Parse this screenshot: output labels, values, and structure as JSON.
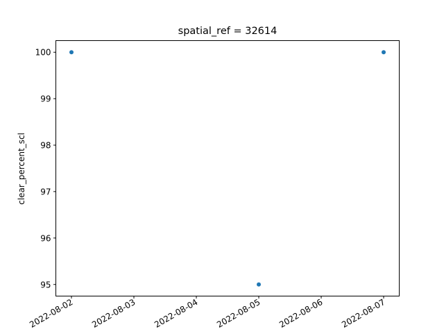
{
  "chart_data": {
    "type": "scatter",
    "title": "spatial_ref = 32614",
    "xlabel": "",
    "ylabel": "clear_percent_scl",
    "x": [
      "2022-08-02",
      "2022-08-05",
      "2022-08-07"
    ],
    "y": [
      100,
      95,
      100
    ],
    "xlim": [
      "2022-08-01T18:00",
      "2022-08-07T06:00"
    ],
    "ylim": [
      94.75,
      100.25
    ],
    "x_ticks": [
      "2022-08-02",
      "2022-08-03",
      "2022-08-04",
      "2022-08-05",
      "2022-08-06",
      "2022-08-07"
    ],
    "y_ticks": [
      95,
      96,
      97,
      98,
      99,
      100
    ],
    "grid": false,
    "point_color": "#1f77b4"
  }
}
